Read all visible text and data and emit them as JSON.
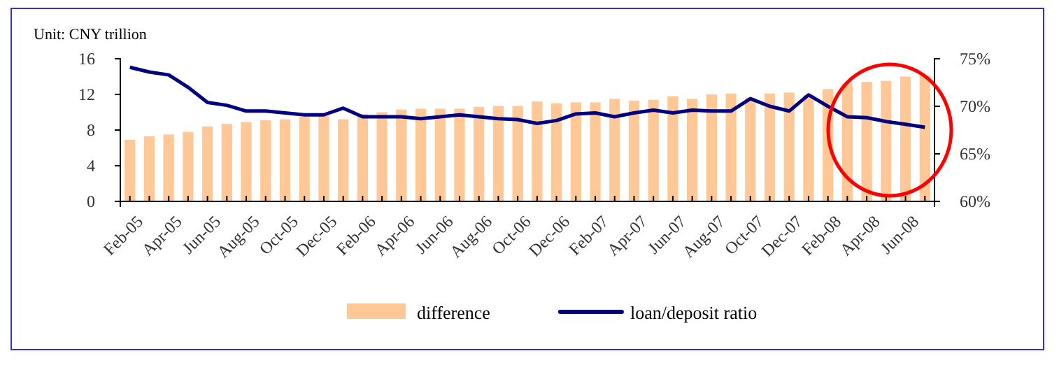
{
  "chart_data": {
    "type": "bar",
    "annotations": [
      "Unit: CNY trillion"
    ],
    "categories": [
      "Feb-05",
      null,
      "Apr-05",
      null,
      "Jun-05",
      null,
      "Aug-05",
      null,
      "Oct-05",
      null,
      "Dec-05",
      null,
      "Feb-06",
      null,
      "Apr-06",
      null,
      "Jun-06",
      null,
      "Aug-06",
      null,
      "Oct-06",
      null,
      "Dec-06",
      null,
      "Feb-07",
      null,
      "Apr-07",
      null,
      "Jun-07",
      null,
      "Aug-07",
      null,
      "Oct-07",
      null,
      "Dec-07",
      null,
      "Feb-08",
      null,
      "Apr-08",
      null,
      "Jun-08",
      null
    ],
    "series": [
      {
        "name": "difference",
        "color": "#ffc896",
        "values": [
          6.9,
          7.3,
          7.5,
          7.8,
          8.4,
          8.7,
          8.9,
          9.1,
          9.2,
          9.5,
          9.6,
          9.2,
          9.8,
          10.0,
          10.3,
          10.4,
          10.4,
          10.4,
          10.6,
          10.7,
          10.7,
          11.2,
          11.0,
          11.1,
          11.1,
          11.5,
          11.3,
          11.4,
          11.8,
          11.5,
          12.0,
          12.1,
          11.6,
          12.1,
          12.2,
          11.9,
          12.6,
          13.2,
          13.4,
          13.5,
          14.0,
          14.1
        ]
      },
      {
        "name": "loan/deposit ratio",
        "type": "line",
        "axis": "y2",
        "color": "#000080",
        "values": [
          74.1,
          73.6,
          73.3,
          72.0,
          70.4,
          70.1,
          69.5,
          69.5,
          69.3,
          69.1,
          69.1,
          69.8,
          68.9,
          68.9,
          68.9,
          68.7,
          68.9,
          69.1,
          68.9,
          68.7,
          68.6,
          68.2,
          68.5,
          69.2,
          69.3,
          68.9,
          69.3,
          69.6,
          69.3,
          69.6,
          69.5,
          69.5,
          70.8,
          70.0,
          69.5,
          71.2,
          70.0,
          68.9,
          68.8,
          68.4,
          68.1,
          67.8
        ]
      }
    ],
    "ylim": [
      0,
      16
    ],
    "yticks": [
      0,
      4,
      8,
      12,
      16
    ],
    "y2lim": [
      60,
      75
    ],
    "y2ticks": [
      {
        "value": 60,
        "label": "60%"
      },
      {
        "value": 65,
        "label": "65%"
      },
      {
        "value": 70,
        "label": "70%"
      },
      {
        "value": 75,
        "label": "75%"
      }
    ],
    "grid": false,
    "legend": "bottom",
    "marker": "none",
    "line_style": "solid"
  }
}
